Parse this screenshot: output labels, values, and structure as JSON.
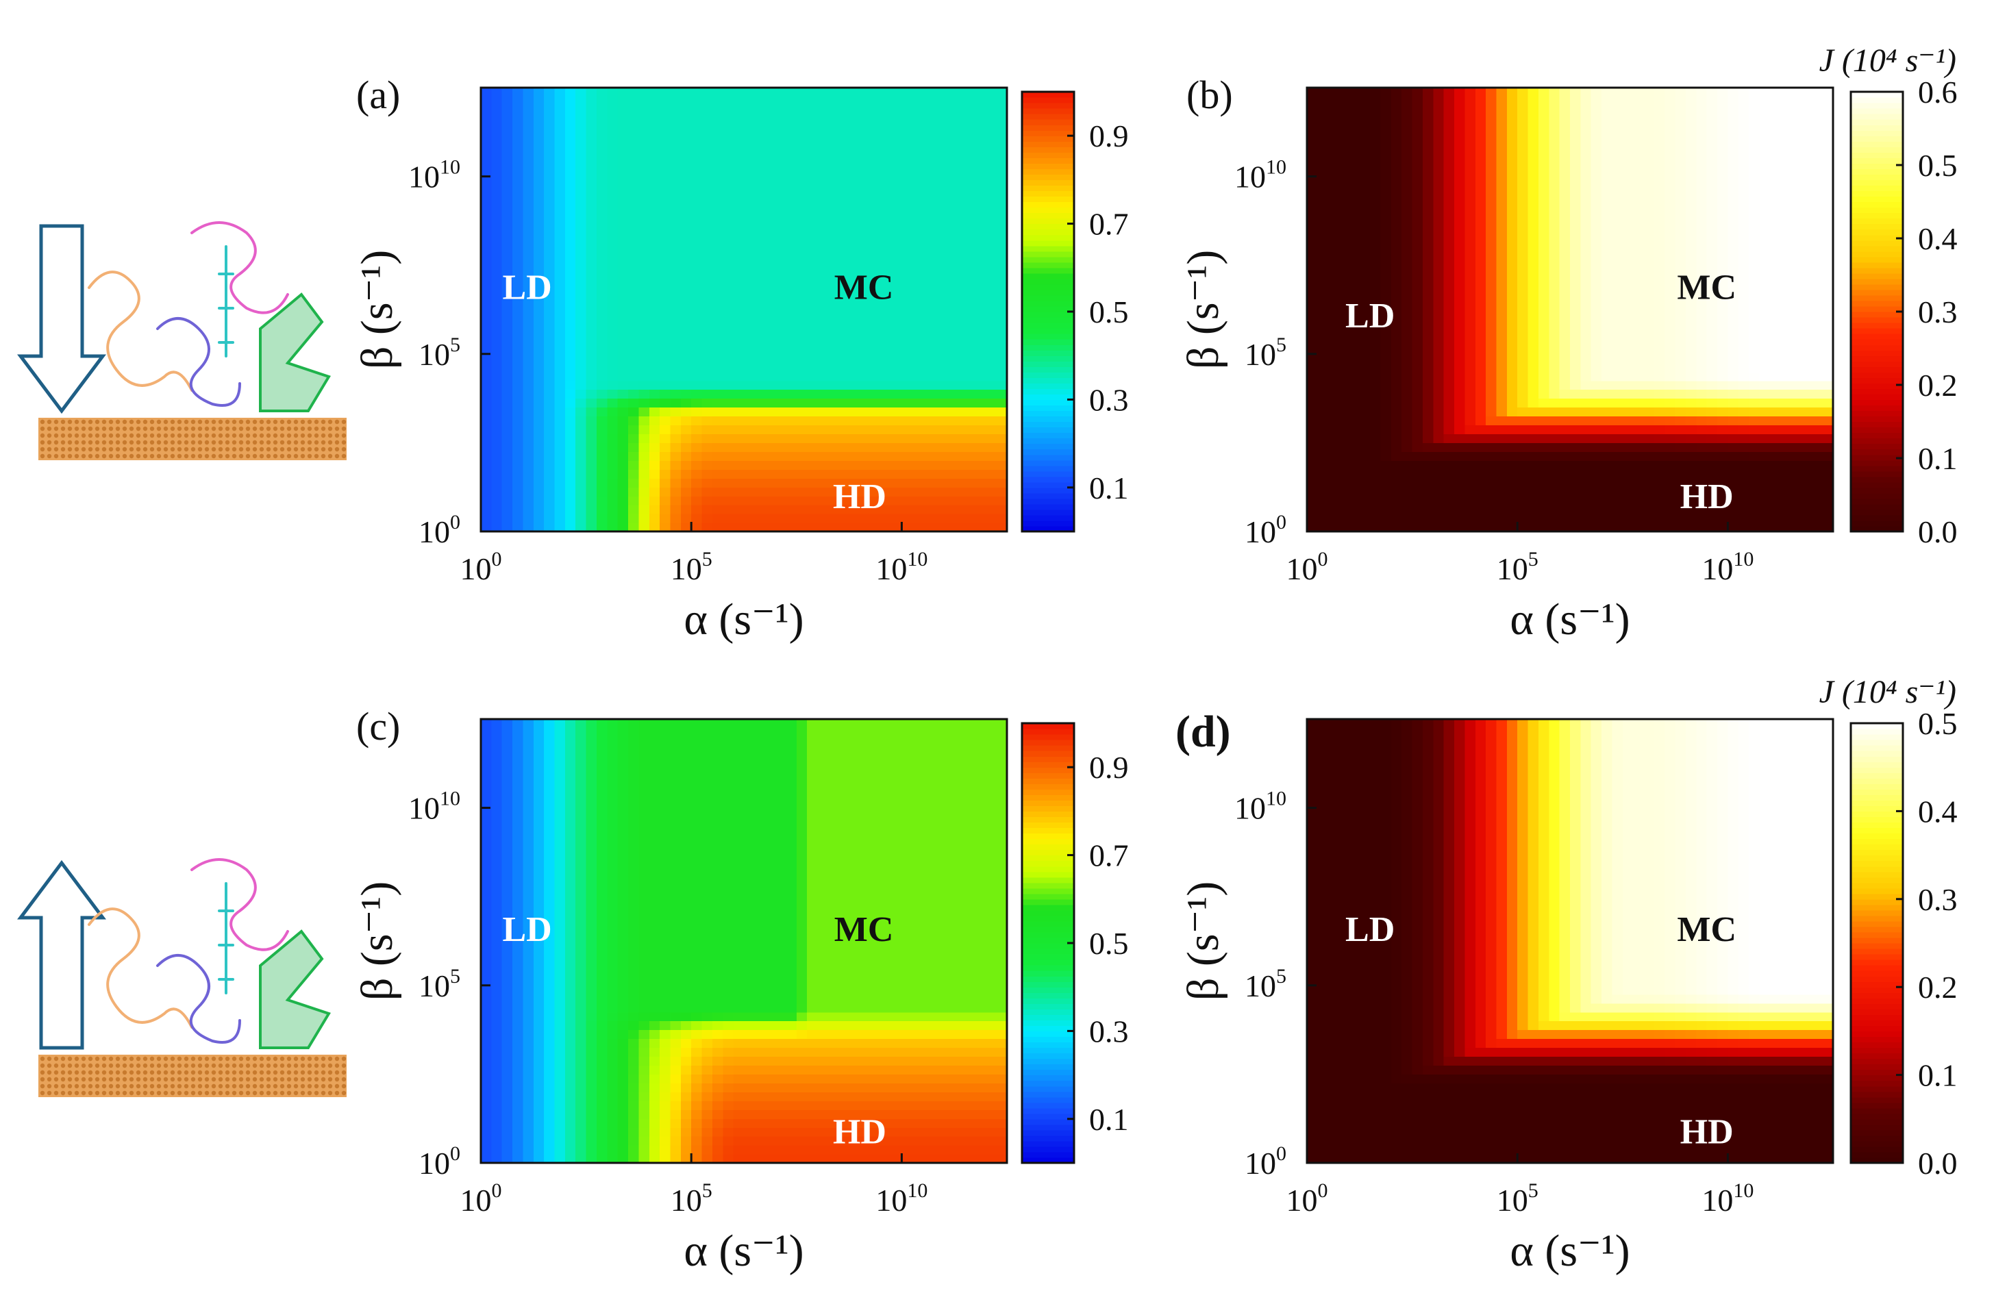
{
  "chart_data": [
    {
      "type": "heatmap",
      "panel": "(a)",
      "panel_bold": false,
      "colormap": "rainbow",
      "x_label": "α (s⁻¹)",
      "y_label": "β (s⁻¹)",
      "x_scale": "log10",
      "y_scale": "log10",
      "x_range": [
        0,
        12.5
      ],
      "y_range": [
        0,
        12.5
      ],
      "x_ticks": [
        {
          "exp": "0",
          "value": 0
        },
        {
          "exp": "5",
          "value": 5
        },
        {
          "exp": "10",
          "value": 10
        }
      ],
      "y_ticks": [
        {
          "exp": "0",
          "value": 0
        },
        {
          "exp": "5",
          "value": 5
        },
        {
          "exp": "10",
          "value": 10
        }
      ],
      "x_tick_base": "10",
      "y_tick_base": "10",
      "colorbar": {
        "range": [
          0,
          1
        ],
        "ticks": [
          "0.1",
          "0.3",
          "0.5",
          "0.7",
          "0.9"
        ],
        "tick_values": [
          0.1,
          0.3,
          0.5,
          0.7,
          0.9
        ],
        "title": ""
      },
      "regions": [
        {
          "label": "LD",
          "alpha_log": 1.1,
          "beta_log": 6.9,
          "color": "#ffffff"
        },
        {
          "label": "MC",
          "alpha_log": 9.1,
          "beta_log": 6.9,
          "color": "#111111"
        },
        {
          "label": "HD",
          "alpha_log": 9.0,
          "beta_log": 1.0,
          "color": "#ffffff"
        }
      ],
      "phase_field": {
        "ld_low": 0.12,
        "ld_high": 0.34,
        "mc": 0.35,
        "hd_low": 0.64,
        "hd_high": 0.94,
        "alpha_edge": 4.0,
        "beta_edge": 3.6
      }
    },
    {
      "type": "heatmap",
      "panel": "(b)",
      "panel_bold": false,
      "colormap": "hot",
      "x_label": "α (s⁻¹)",
      "y_label": "β (s⁻¹)",
      "x_scale": "log10",
      "y_scale": "log10",
      "x_range": [
        0,
        12.5
      ],
      "y_range": [
        0,
        12.5
      ],
      "x_ticks": [
        {
          "exp": "0",
          "value": 0
        },
        {
          "exp": "5",
          "value": 5
        },
        {
          "exp": "10",
          "value": 10
        }
      ],
      "y_ticks": [
        {
          "exp": "0",
          "value": 0
        },
        {
          "exp": "5",
          "value": 5
        },
        {
          "exp": "10",
          "value": 10
        }
      ],
      "x_tick_base": "10",
      "y_tick_base": "10",
      "colorbar": {
        "range": [
          0,
          0.6
        ],
        "ticks": [
          "0.0",
          "0.1",
          "0.2",
          "0.3",
          "0.4",
          "0.5",
          "0.6"
        ],
        "tick_values": [
          0,
          0.1,
          0.2,
          0.3,
          0.4,
          0.5,
          0.6
        ],
        "title": "J (10⁴ s⁻¹)"
      },
      "regions": [
        {
          "label": "LD",
          "alpha_log": 1.5,
          "beta_log": 6.1,
          "color": "#ffffff"
        },
        {
          "label": "MC",
          "alpha_log": 9.5,
          "beta_log": 6.9,
          "color": "#111111"
        },
        {
          "label": "HD",
          "alpha_log": 9.5,
          "beta_log": 1.0,
          "color": "#ffffff"
        }
      ],
      "current_field": {
        "jmax": 0.6,
        "alpha_edge": 4.4,
        "beta_edge": 3.6
      }
    },
    {
      "type": "heatmap",
      "panel": "(c)",
      "panel_bold": false,
      "colormap": "rainbow",
      "x_label": "α (s⁻¹)",
      "y_label": "β (s⁻¹)",
      "x_scale": "log10",
      "y_scale": "log10",
      "x_range": [
        0,
        12.5
      ],
      "y_range": [
        0,
        12.5
      ],
      "x_ticks": [
        {
          "exp": "0",
          "value": 0
        },
        {
          "exp": "5",
          "value": 5
        },
        {
          "exp": "10",
          "value": 10
        }
      ],
      "y_ticks": [
        {
          "exp": "0",
          "value": 0
        },
        {
          "exp": "5",
          "value": 5
        },
        {
          "exp": "10",
          "value": 10
        }
      ],
      "x_tick_base": "10",
      "y_tick_base": "10",
      "colorbar": {
        "range": [
          0,
          1
        ],
        "ticks": [
          "0.1",
          "0.3",
          "0.5",
          "0.7",
          "0.9"
        ],
        "tick_values": [
          0.1,
          0.3,
          0.5,
          0.7,
          0.9
        ],
        "title": ""
      },
      "regions": [
        {
          "label": "LD",
          "alpha_log": 1.1,
          "beta_log": 6.6,
          "color": "#ffffff"
        },
        {
          "label": "MC",
          "alpha_log": 9.1,
          "beta_log": 6.6,
          "color": "#111111"
        },
        {
          "label": "HD",
          "alpha_log": 9.0,
          "beta_log": 0.9,
          "color": "#ffffff"
        }
      ],
      "phase_field": {
        "ld_low": 0.12,
        "ld_high": 0.5,
        "mc": 0.55,
        "mc_right": 0.62,
        "hd_low": 0.66,
        "hd_high": 0.95,
        "alpha_edge": 4.6,
        "beta_edge": 3.8
      }
    },
    {
      "type": "heatmap",
      "panel": "(d)",
      "panel_bold": true,
      "colormap": "hot",
      "x_label": "α (s⁻¹)",
      "y_label": "β (s⁻¹)",
      "x_scale": "log10",
      "y_scale": "log10",
      "x_range": [
        0,
        12.5
      ],
      "y_range": [
        0,
        12.5
      ],
      "x_ticks": [
        {
          "exp": "0",
          "value": 0
        },
        {
          "exp": "5",
          "value": 5
        },
        {
          "exp": "10",
          "value": 10
        }
      ],
      "y_ticks": [
        {
          "exp": "0",
          "value": 0
        },
        {
          "exp": "5",
          "value": 5
        },
        {
          "exp": "10",
          "value": 10
        }
      ],
      "x_tick_base": "10",
      "y_tick_base": "10",
      "colorbar": {
        "range": [
          0,
          0.5
        ],
        "ticks": [
          "0.0",
          "0.1",
          "0.2",
          "0.3",
          "0.4",
          "0.5"
        ],
        "tick_values": [
          0,
          0.1,
          0.2,
          0.3,
          0.4,
          0.5
        ],
        "title": "J (10⁴ s⁻¹)"
      },
      "regions": [
        {
          "label": "LD",
          "alpha_log": 1.5,
          "beta_log": 6.6,
          "color": "#ffffff"
        },
        {
          "label": "MC",
          "alpha_log": 9.5,
          "beta_log": 6.6,
          "color": "#111111"
        },
        {
          "label": "HD",
          "alpha_log": 9.5,
          "beta_log": 0.9,
          "color": "#ffffff"
        }
      ],
      "current_field": {
        "jmax": 0.5,
        "alpha_edge": 4.8,
        "beta_edge": 4.0
      }
    }
  ],
  "insets": [
    {
      "arrow_direction": "down",
      "description_icon": "protein-on-surface-icon"
    },
    {
      "arrow_direction": "up",
      "description_icon": "protein-on-surface-icon"
    }
  ],
  "colors": {
    "arrow_stroke": "#1f5f86",
    "surface": "#e8a35a",
    "protein_orange": "#f2b074",
    "protein_blue": "#6f63d6",
    "protein_pink": "#e55fc8",
    "protein_green": "#1fb34c",
    "protein_cyan": "#2ec4c4"
  }
}
